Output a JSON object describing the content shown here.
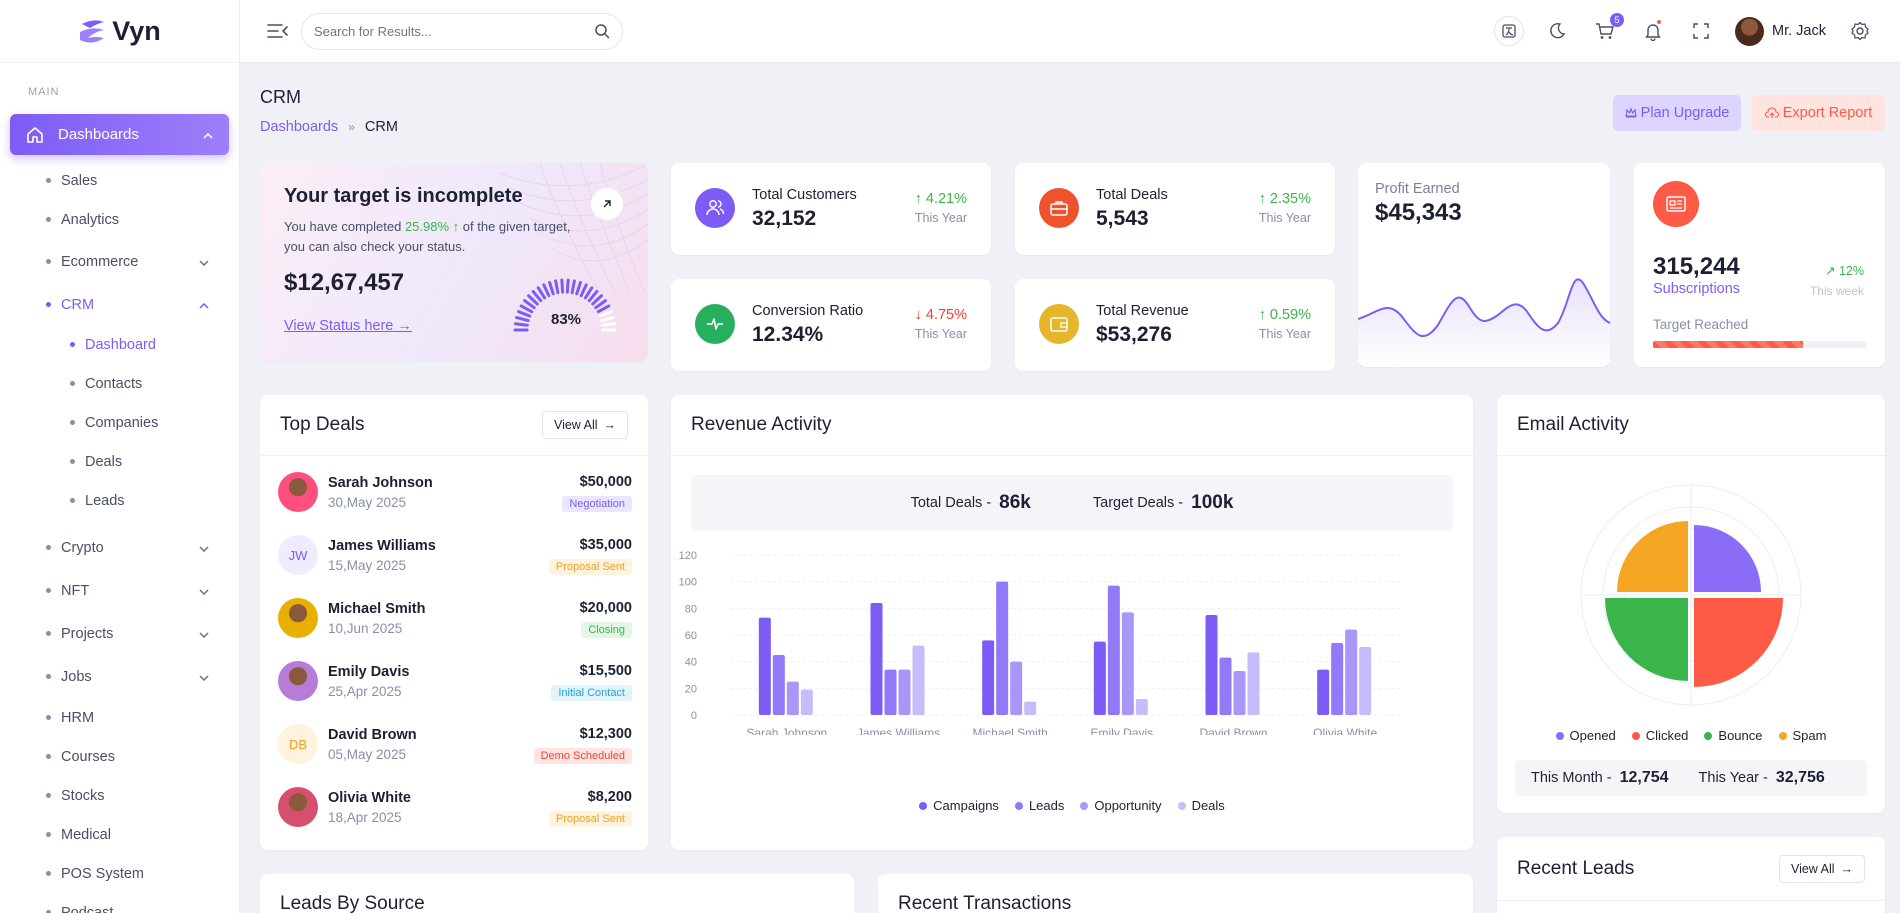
{
  "brand": {
    "name": "Vyn"
  },
  "sidebar": {
    "section": "MAIN",
    "active": {
      "label": "Dashboards"
    },
    "items": [
      {
        "label": "Sales"
      },
      {
        "label": "Analytics"
      },
      {
        "label": "Ecommerce",
        "chevron": "down"
      },
      {
        "label": "CRM",
        "chevron": "up"
      }
    ],
    "crm_sub": [
      {
        "label": "Dashboard"
      },
      {
        "label": "Contacts"
      },
      {
        "label": "Companies"
      },
      {
        "label": "Deals"
      },
      {
        "label": "Leads"
      }
    ],
    "more": [
      {
        "label": "Crypto",
        "chevron": "down"
      },
      {
        "label": "NFT",
        "chevron": "down"
      },
      {
        "label": "Projects",
        "chevron": "down"
      },
      {
        "label": "Jobs",
        "chevron": "down"
      },
      {
        "label": "HRM"
      },
      {
        "label": "Courses"
      },
      {
        "label": "Stocks"
      },
      {
        "label": "Medical"
      },
      {
        "label": "POS System"
      },
      {
        "label": "Podcast"
      }
    ]
  },
  "topbar": {
    "search_placeholder": "Search for Results...",
    "cart_count": "5",
    "user": "Mr. Jack"
  },
  "page": {
    "title": "CRM",
    "crumb_parent": "Dashboards",
    "crumb_current": "CRM"
  },
  "actions": {
    "upgrade": "Plan Upgrade",
    "export": "Export Report"
  },
  "target": {
    "title": "Your target is incomplete",
    "desc_pre": "You have completed ",
    "pct": "25.98%",
    "desc_post": " of the given target, you can also check your status.",
    "amount": "$12,67,457",
    "link": "View Status here",
    "gauge": "83%",
    "gauge_value": 0.83
  },
  "stats": [
    {
      "label": "Total Customers",
      "value": "32,152",
      "change": "4.21%",
      "dir": "up",
      "period": "This Year",
      "color": "#7c5cf5"
    },
    {
      "label": "Total Deals",
      "value": "5,543",
      "change": "2.35%",
      "dir": "up",
      "period": "This Year",
      "color": "#f0522e"
    },
    {
      "label": "Conversion Ratio",
      "value": "12.34%",
      "change": "4.75%",
      "dir": "down",
      "period": "This Year",
      "color": "#26b05e"
    },
    {
      "label": "Total Revenue",
      "value": "$53,276",
      "change": "0.59%",
      "dir": "up",
      "period": "This Year",
      "color": "#e5b52a"
    }
  ],
  "profit": {
    "label": "Profit Earned",
    "value": "$45,343"
  },
  "subs": {
    "value": "315,244",
    "label": "Subscriptions",
    "change": "12%",
    "period": "This week",
    "target_label": "Target Reached",
    "progress": 0.7
  },
  "deals": {
    "title": "Top Deals",
    "view_all": "View All",
    "rows": [
      {
        "name": "Sarah Johnson",
        "date": "30,May 2025",
        "amount": "$50,000",
        "status": "Negotiation",
        "initials": "",
        "tag_bg": "#ebe6ff",
        "tag_fg": "#7c5cf5",
        "av_bg": "#ff4f7e"
      },
      {
        "name": "James Williams",
        "date": "15,May 2025",
        "amount": "$35,000",
        "status": "Proposal Sent",
        "initials": "JW",
        "tag_bg": "#fff3df",
        "tag_fg": "#f0a020",
        "av_bg": "#efecff"
      },
      {
        "name": "Michael Smith",
        "date": "10,Jun 2025",
        "amount": "$20,000",
        "status": "Closing",
        "initials": "",
        "tag_bg": "#e4f6e8",
        "tag_fg": "#3ab54a",
        "av_bg": "#e8b000"
      },
      {
        "name": "Emily Davis",
        "date": "25,Apr 2025",
        "amount": "$15,500",
        "status": "Initial Contact",
        "initials": "",
        "tag_bg": "#e2f3fb",
        "tag_fg": "#27a3d6",
        "av_bg": "#b77bd8"
      },
      {
        "name": "David Brown",
        "date": "05,May 2025",
        "amount": "$12,300",
        "status": "Demo Scheduled",
        "initials": "DB",
        "tag_bg": "#ffe5e2",
        "tag_fg": "#ff3b30",
        "av_bg": "#fff3df"
      },
      {
        "name": "Olivia White",
        "date": "18,Apr 2025",
        "amount": "$8,200",
        "status": "Proposal Sent",
        "initials": "",
        "tag_bg": "#fff3df",
        "tag_fg": "#f0a020",
        "av_bg": "#d74f6e"
      }
    ]
  },
  "revenue": {
    "title": "Revenue Activity",
    "total_label": "Total Deals -",
    "total_value": "86k",
    "target_label": "Target Deals -",
    "target_value": "100k"
  },
  "chart_data": {
    "type": "bar",
    "categories": [
      "Sarah Johnson",
      "James Williams",
      "Michael Smith",
      "Emily Davis",
      "David Brown",
      "Olivia White"
    ],
    "series": [
      {
        "name": "Campaigns",
        "values": [
          73,
          84,
          56,
          55,
          75,
          34
        ],
        "color": "#7c5cf5"
      },
      {
        "name": "Leads",
        "values": [
          45,
          34,
          100,
          97,
          43,
          54
        ],
        "color": "#9179f7"
      },
      {
        "name": "Opportunity",
        "values": [
          25,
          34,
          40,
          77,
          33,
          64
        ],
        "color": "#a996f9"
      },
      {
        "name": "Deals",
        "values": [
          19,
          52,
          10,
          12,
          47,
          51
        ],
        "color": "#c6bbfb"
      }
    ],
    "yticks": [
      "0",
      "20",
      "40",
      "60",
      "80",
      "100",
      "120"
    ],
    "ylim": [
      0,
      120
    ]
  },
  "email": {
    "title": "Email Activity",
    "legend": [
      {
        "name": "Opened",
        "color": "#8b6cf7"
      },
      {
        "name": "Clicked",
        "color": "#ff5a45"
      },
      {
        "name": "Bounce",
        "color": "#3ab54a"
      },
      {
        "name": "Spam",
        "color": "#f5a623"
      }
    ],
    "month_label": "This Month -",
    "month_value": "12,754",
    "year_label": "This Year -",
    "year_value": "32,756"
  },
  "bottom": {
    "leads_title": "Leads By Source",
    "tx_title": "Recent Transactions",
    "recent_title": "Recent Leads",
    "view_all": "View All"
  }
}
